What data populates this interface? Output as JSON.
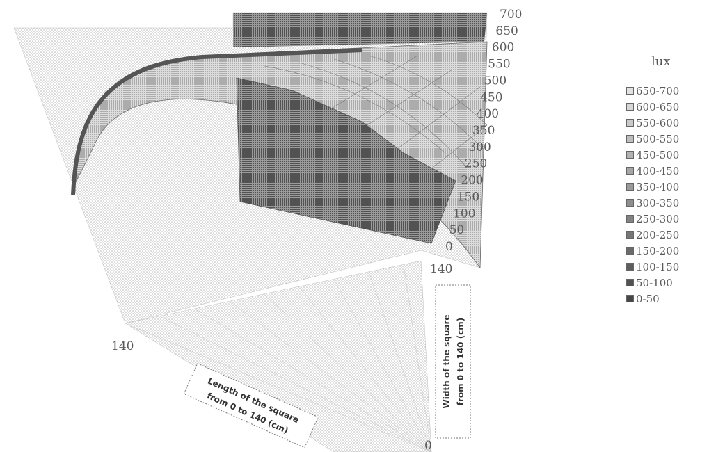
{
  "chart_data": {
    "type": "surface",
    "zlim": [
      0,
      700
    ],
    "z_ticks": [
      "700",
      "650",
      "600",
      "550",
      "500",
      "450",
      "400",
      "350",
      "300",
      "250",
      "200",
      "150",
      "100",
      "50",
      "0"
    ],
    "axis_end_labels": {
      "length_end": "140",
      "width_end": "140",
      "origin": "0"
    },
    "length_axis_label_lines": [
      "Length of the square",
      "from 0 to 140 (cm)"
    ],
    "width_axis_label_lines": [
      "Width of the square",
      "from 0 to 140 (cm)"
    ],
    "legend_title": "lux",
    "legend": [
      {
        "range": "650-700",
        "color": "#e2e2e2"
      },
      {
        "range": "600-650",
        "color": "#d6d6d6"
      },
      {
        "range": "550-600",
        "color": "#cacaca"
      },
      {
        "range": "500-550",
        "color": "#bebebe"
      },
      {
        "range": "450-500",
        "color": "#b2b2b2"
      },
      {
        "range": "400-450",
        "color": "#a6a6a6"
      },
      {
        "range": "350-400",
        "color": "#9a9a9a"
      },
      {
        "range": "300-350",
        "color": "#8e8e8e"
      },
      {
        "range": "250-300",
        "color": "#828282"
      },
      {
        "range": "200-250",
        "color": "#767676"
      },
      {
        "range": "150-200",
        "color": "#6a6a6a"
      },
      {
        "range": "100-150",
        "color": "#5e5e5e"
      },
      {
        "range": "50-100",
        "color": "#525252"
      },
      {
        "range": "0-50",
        "color": "#464646"
      }
    ]
  }
}
